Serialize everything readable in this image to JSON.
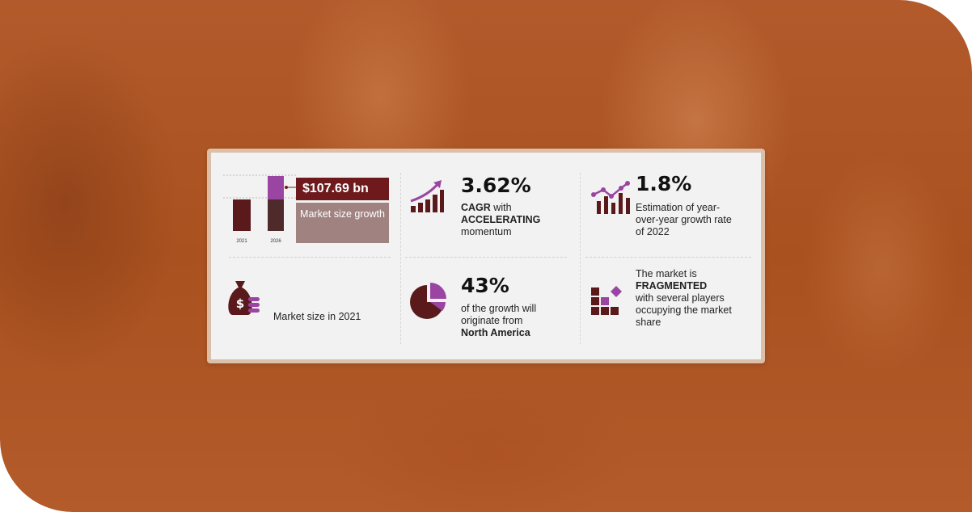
{
  "bar_chart": {
    "categories": [
      "2021",
      "2026"
    ],
    "callout_value": "$107.69 bn",
    "growth_label": "Market size growth"
  },
  "market_size": {
    "label": "Market size in 2021"
  },
  "cagr": {
    "value": "3.62%",
    "line1_bold": "CAGR",
    "line1_rest": " with",
    "line2_bold": "ACCELERATING",
    "line3": "momentum"
  },
  "yoy": {
    "value": "1.8%",
    "text": "Estimation of year-over-year growth rate of 2022"
  },
  "region": {
    "value": "43%",
    "line1": "of the growth will",
    "line2": "originate from",
    "line3_bold": "North America"
  },
  "fragmented": {
    "line1": "The market is",
    "line2_bold": "FRAGMENTED",
    "line3": "with several players",
    "line4": "occupying the market",
    "line5": "share"
  },
  "colors": {
    "maroon": "#6e1a1c",
    "purple": "#9b45a3",
    "brown_bar": "#4e2a2a",
    "background": "#aa5322"
  }
}
